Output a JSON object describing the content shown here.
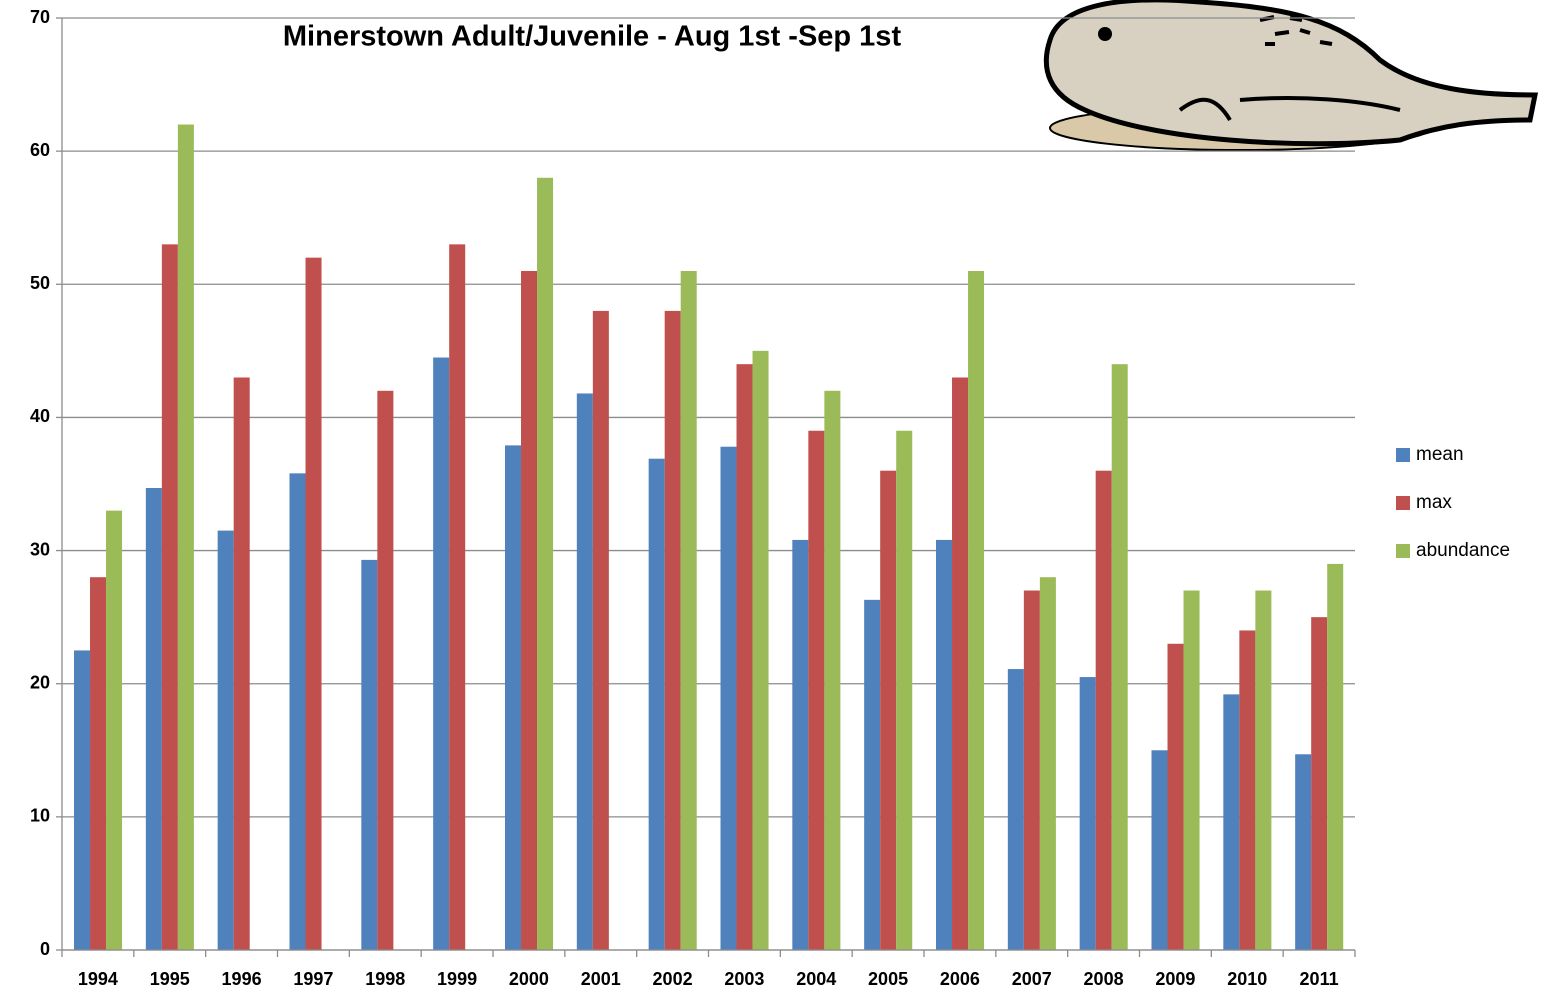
{
  "chart_data": {
    "type": "bar",
    "title": "Minerstown Adult/Juvenile - Aug 1st -Sep 1st",
    "categories": [
      "1994",
      "1995",
      "1996",
      "1997",
      "1998",
      "1999",
      "2000",
      "2001",
      "2002",
      "2003",
      "2004",
      "2005",
      "2006",
      "2007",
      "2008",
      "2009",
      "2010",
      "2011"
    ],
    "series": [
      {
        "name": "mean",
        "color": "#4f81bd",
        "values": [
          22.5,
          34.7,
          31.5,
          35.8,
          29.3,
          44.5,
          37.9,
          41.8,
          36.9,
          37.8,
          30.8,
          26.3,
          30.8,
          21.1,
          20.5,
          15.0,
          19.2,
          14.7
        ]
      },
      {
        "name": "max",
        "color": "#c0504d",
        "values": [
          28,
          53,
          43,
          52,
          42,
          53,
          51,
          48,
          48,
          44,
          39,
          36,
          43,
          27,
          36,
          23,
          24,
          25
        ]
      },
      {
        "name": "abundance",
        "color": "#9bbb59",
        "values": [
          33,
          62,
          null,
          null,
          null,
          null,
          58,
          null,
          51,
          45,
          42,
          39,
          51,
          28,
          44,
          27,
          27,
          29
        ]
      }
    ],
    "ylim": [
      0,
      70
    ],
    "yticks": [
      0,
      10,
      20,
      30,
      40,
      50,
      60,
      70
    ],
    "grid": true,
    "legend": "right"
  }
}
